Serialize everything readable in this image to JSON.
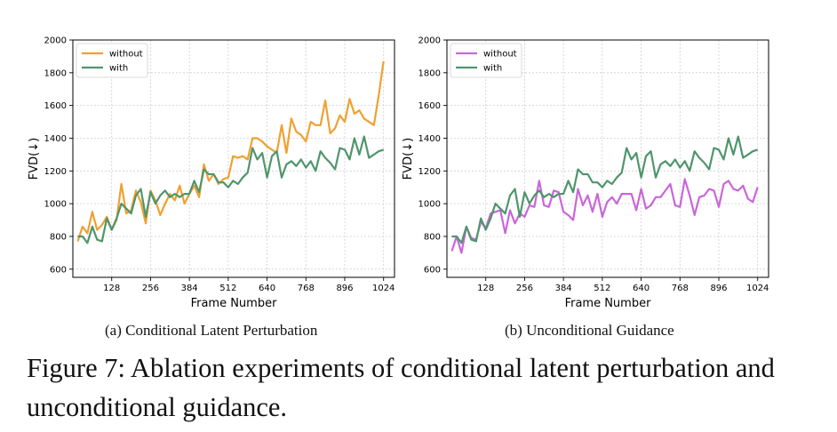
{
  "figure_caption": "Figure 7: Ablation experiments of conditional latent perturbation and unconditional guidance.",
  "subcaptions": [
    "(a) Conditional Latent Perturbation",
    "(b) Unconditional Guidance"
  ],
  "colors": {
    "orange": "#F0A030",
    "purple": "#C966D9",
    "green": "#4F956C",
    "grid": "#cfcfcf"
  },
  "chart_data": [
    {
      "type": "line",
      "xlabel": "Frame Number",
      "ylabel": "FVD(↓)",
      "xticks": [
        128,
        256,
        384,
        512,
        640,
        768,
        896,
        1024
      ],
      "yticks": [
        600,
        800,
        1000,
        1200,
        1400,
        1600,
        1800,
        2000
      ],
      "xlim": [
        0,
        1060
      ],
      "ylim": [
        550,
        2000
      ],
      "grid": true,
      "legend_position": "top-left",
      "x": [
        16,
        32,
        48,
        64,
        80,
        96,
        112,
        128,
        144,
        160,
        176,
        192,
        208,
        224,
        240,
        256,
        272,
        288,
        304,
        320,
        336,
        352,
        368,
        384,
        400,
        416,
        432,
        448,
        464,
        480,
        496,
        512,
        528,
        544,
        560,
        576,
        592,
        608,
        624,
        640,
        656,
        672,
        688,
        704,
        720,
        736,
        752,
        768,
        784,
        800,
        816,
        832,
        848,
        864,
        880,
        896,
        912,
        928,
        944,
        960,
        976,
        992,
        1008,
        1024
      ],
      "series": [
        {
          "name": "without",
          "color": "#F0A030",
          "values": [
            770,
            860,
            820,
            950,
            840,
            870,
            920,
            840,
            900,
            1120,
            940,
            960,
            1080,
            1010,
            880,
            1080,
            1020,
            930,
            1000,
            1060,
            1020,
            1110,
            1000,
            1060,
            1110,
            1040,
            1240,
            1140,
            1180,
            1120,
            1150,
            1160,
            1290,
            1280,
            1290,
            1270,
            1400,
            1400,
            1380,
            1350,
            1330,
            1310,
            1480,
            1310,
            1520,
            1440,
            1420,
            1380,
            1500,
            1480,
            1480,
            1630,
            1430,
            1460,
            1540,
            1500,
            1640,
            1550,
            1570,
            1520,
            1500,
            1480,
            1660,
            1870
          ]
        },
        {
          "name": "with",
          "color": "#4F956C",
          "values": [
            800,
            800,
            760,
            860,
            780,
            770,
            910,
            840,
            910,
            1000,
            970,
            940,
            1050,
            1090,
            920,
            1070,
            1000,
            1050,
            1080,
            1040,
            1060,
            1040,
            1060,
            1060,
            1140,
            1070,
            1210,
            1180,
            1180,
            1130,
            1130,
            1100,
            1140,
            1120,
            1160,
            1190,
            1340,
            1270,
            1310,
            1160,
            1290,
            1320,
            1160,
            1240,
            1260,
            1230,
            1270,
            1220,
            1260,
            1200,
            1320,
            1280,
            1250,
            1210,
            1340,
            1330,
            1270,
            1400,
            1300,
            1410,
            1280,
            1300,
            1320,
            1330
          ]
        }
      ]
    },
    {
      "type": "line",
      "xlabel": "Frame Number",
      "ylabel": "FVD(↓)",
      "xticks": [
        128,
        256,
        384,
        512,
        640,
        768,
        896,
        1024
      ],
      "yticks": [
        600,
        800,
        1000,
        1200,
        1400,
        1600,
        1800,
        2000
      ],
      "xlim": [
        0,
        1060
      ],
      "ylim": [
        550,
        2000
      ],
      "grid": true,
      "legend_position": "top-left",
      "x": [
        16,
        32,
        48,
        64,
        80,
        96,
        112,
        128,
        144,
        160,
        176,
        192,
        208,
        224,
        240,
        256,
        272,
        288,
        304,
        320,
        336,
        352,
        368,
        384,
        400,
        416,
        432,
        448,
        464,
        480,
        496,
        512,
        528,
        544,
        560,
        576,
        592,
        608,
        624,
        640,
        656,
        672,
        688,
        704,
        720,
        736,
        752,
        768,
        784,
        800,
        816,
        832,
        848,
        864,
        880,
        896,
        912,
        928,
        944,
        960,
        976,
        992,
        1008,
        1024
      ],
      "series": [
        {
          "name": "without",
          "color": "#C966D9",
          "values": [
            710,
            800,
            700,
            860,
            790,
            780,
            890,
            850,
            940,
            950,
            960,
            820,
            960,
            880,
            940,
            920,
            990,
            980,
            1140,
            990,
            980,
            1080,
            1070,
            950,
            930,
            900,
            1090,
            990,
            1050,
            950,
            1060,
            920,
            1010,
            1040,
            1000,
            1060,
            1060,
            1060,
            960,
            1090,
            970,
            990,
            1040,
            1040,
            1080,
            1120,
            990,
            980,
            1150,
            1050,
            930,
            1040,
            1050,
            1090,
            1080,
            980,
            1120,
            1140,
            1090,
            1080,
            1110,
            1030,
            1010,
            1100
          ]
        },
        {
          "name": "with",
          "color": "#4F956C",
          "values": [
            800,
            800,
            760,
            860,
            780,
            770,
            910,
            840,
            910,
            1000,
            970,
            940,
            1050,
            1090,
            920,
            1070,
            1000,
            1050,
            1080,
            1040,
            1060,
            1040,
            1060,
            1060,
            1140,
            1070,
            1210,
            1180,
            1180,
            1130,
            1130,
            1100,
            1140,
            1120,
            1160,
            1190,
            1340,
            1270,
            1310,
            1160,
            1290,
            1320,
            1160,
            1240,
            1260,
            1230,
            1270,
            1220,
            1260,
            1200,
            1320,
            1280,
            1250,
            1210,
            1340,
            1330,
            1270,
            1400,
            1300,
            1410,
            1280,
            1300,
            1320,
            1330
          ]
        }
      ]
    }
  ]
}
